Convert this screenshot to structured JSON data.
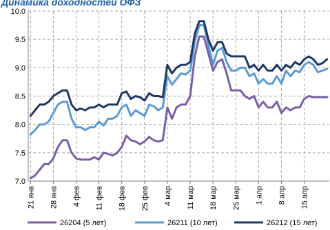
{
  "chart_data": {
    "type": "line",
    "title": "Динамика доходностей ОФЗ",
    "xlabel": "",
    "ylabel": "",
    "ylim": [
      7.0,
      10.0
    ],
    "yticks": [
      7.0,
      7.5,
      8.0,
      8.5,
      9.0,
      9.5,
      10.0
    ],
    "y_tick_labels": [
      "7.0",
      "7.5",
      "8.0",
      "8.5",
      "9.0",
      "9.5",
      "10.0"
    ],
    "grid": true,
    "legend_position": "bottom",
    "x_tick_labels": [
      "21 янв",
      "28 янв",
      "4 фев",
      "11 фев",
      "18 фев",
      "25 фев",
      "4 мар",
      "11 мар",
      "18 мар",
      "25 мар",
      "1 апр",
      "8 апр",
      "15 апр"
    ],
    "x_tick_index": [
      0,
      5,
      10,
      15,
      20,
      25,
      30,
      35,
      40,
      45,
      50,
      55,
      60
    ],
    "series": [
      {
        "name": "26204  (5 лет)",
        "color": "#7b5ea7",
        "values": [
          7.05,
          7.1,
          7.2,
          7.3,
          7.3,
          7.4,
          7.6,
          7.72,
          7.72,
          7.5,
          7.4,
          7.38,
          7.38,
          7.38,
          7.42,
          7.38,
          7.5,
          7.48,
          7.45,
          7.5,
          7.6,
          7.8,
          7.72,
          7.7,
          7.65,
          7.7,
          7.78,
          7.72,
          7.7,
          7.72,
          8.3,
          8.1,
          8.3,
          8.35,
          8.35,
          8.5,
          9.2,
          9.55,
          9.55,
          9.25,
          8.95,
          9.1,
          9.15,
          8.9,
          8.6,
          8.6,
          8.6,
          8.5,
          8.45,
          8.5,
          8.3,
          8.4,
          8.3,
          8.3,
          8.4,
          8.2,
          8.3,
          8.25,
          8.3,
          8.3,
          8.45,
          8.5,
          8.48,
          8.48,
          8.48,
          8.48
        ]
      },
      {
        "name": "26211  (10 лет)",
        "color": "#5b9bd5",
        "values": [
          7.82,
          7.9,
          8.0,
          8.0,
          8.05,
          8.2,
          8.35,
          8.4,
          8.4,
          8.1,
          7.95,
          7.95,
          7.9,
          7.95,
          7.95,
          8.05,
          7.98,
          8.1,
          8.1,
          8.15,
          8.3,
          8.35,
          8.15,
          8.25,
          8.2,
          8.15,
          8.35,
          8.32,
          8.25,
          8.3,
          8.85,
          8.7,
          8.8,
          8.9,
          8.88,
          8.95,
          9.45,
          9.75,
          9.75,
          9.4,
          9.05,
          9.3,
          9.35,
          9.1,
          8.95,
          8.95,
          9.0,
          9.0,
          8.85,
          8.9,
          8.72,
          8.8,
          8.72,
          8.72,
          8.85,
          8.72,
          8.95,
          8.85,
          8.95,
          8.92,
          9.05,
          9.1,
          9.05,
          8.92,
          8.95,
          8.98
        ]
      },
      {
        "name": "26212  (15 лет)",
        "color": "#1f3864",
        "values": [
          8.15,
          8.25,
          8.35,
          8.35,
          8.4,
          8.5,
          8.55,
          8.6,
          8.6,
          8.35,
          8.25,
          8.28,
          8.25,
          8.3,
          8.3,
          8.35,
          8.3,
          8.35,
          8.35,
          8.35,
          8.55,
          8.58,
          8.45,
          8.5,
          8.48,
          8.42,
          8.55,
          8.5,
          8.5,
          8.48,
          9.05,
          8.9,
          9.0,
          9.05,
          9.05,
          9.1,
          9.6,
          9.82,
          9.82,
          9.5,
          9.3,
          9.45,
          9.45,
          9.25,
          9.2,
          9.2,
          9.2,
          9.2,
          9.0,
          9.05,
          8.95,
          9.05,
          8.95,
          8.95,
          9.05,
          8.95,
          9.05,
          9.0,
          9.1,
          9.05,
          9.15,
          9.2,
          9.15,
          9.05,
          9.08,
          9.15
        ]
      }
    ]
  }
}
